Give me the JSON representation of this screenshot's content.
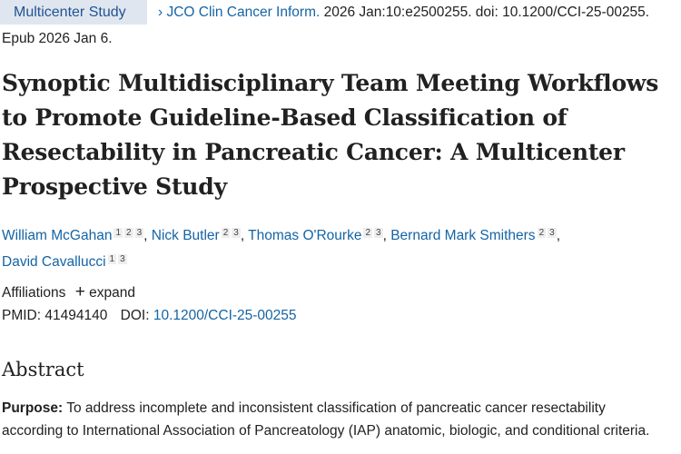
{
  "badge": "Multicenter Study",
  "citation": {
    "journal": "JCO Clin Cancer Inform.",
    "details": " 2026 Jan:10:e2500255. doi: 10.1200/CCI-25-00255.",
    "epub": "Epub 2026 Jan 6."
  },
  "title": "Synoptic Multidisciplinary Team Meeting Workflows to Promote Guideline-Based Classification of Resectability in Pancreatic Cancer: A Multicenter Prospective Study",
  "authors": [
    {
      "name": "William McGahan",
      "affs": [
        "1",
        "2",
        "3"
      ]
    },
    {
      "name": "Nick Butler",
      "affs": [
        "2",
        "3"
      ]
    },
    {
      "name": "Thomas O'Rourke",
      "affs": [
        "2",
        "3"
      ]
    },
    {
      "name": "Bernard Mark Smithers",
      "affs": [
        "2",
        "3"
      ]
    },
    {
      "name": "David Cavallucci",
      "affs": [
        "1",
        "3"
      ]
    }
  ],
  "affiliations": {
    "label": "Affiliations",
    "expand": "expand"
  },
  "ids": {
    "pmid_label": "PMID:",
    "pmid": "41494140",
    "doi_label": "DOI:",
    "doi": "10.1200/CCI-25-00255"
  },
  "abstract": {
    "heading": "Abstract",
    "purpose_label": "Purpose:",
    "purpose_text": " To address incomplete and inconsistent classification of pancreatic cancer resectability according to International Association of Pancreatology (IAP) anatomic, biologic, and conditional criteria."
  }
}
